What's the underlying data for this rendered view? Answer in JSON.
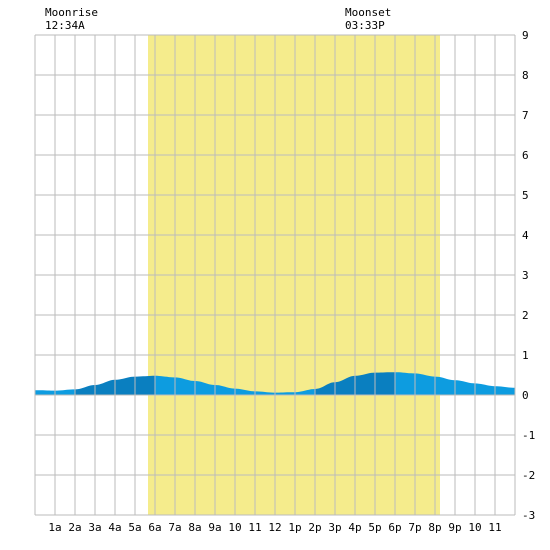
{
  "chart_data": {
    "type": "area",
    "title": "",
    "xlabel": "",
    "ylabel": "",
    "x_range": [
      0,
      24
    ],
    "ylim": [
      -3,
      9
    ],
    "y_ticks": [
      -3,
      -2,
      -1,
      0,
      1,
      2,
      3,
      4,
      5,
      6,
      7,
      8,
      9
    ],
    "x_tick_labels": [
      "1a",
      "2a",
      "3a",
      "4a",
      "5a",
      "6a",
      "7a",
      "8a",
      "9a",
      "10",
      "11",
      "12",
      "1p",
      "2p",
      "3p",
      "4p",
      "5p",
      "6p",
      "7p",
      "8p",
      "9p",
      "10",
      "11"
    ],
    "grid": true,
    "daylight": {
      "start_hour": 5.65,
      "end_hour": 20.25,
      "color": "#f5ec8c"
    },
    "moon": {
      "moonrise_label": "Moonrise",
      "moonrise_time": "12:34A",
      "moonset_label": "Moonset",
      "moonset_time": "03:33P"
    },
    "series": [
      {
        "x": [
          0,
          1,
          2,
          3,
          4,
          5,
          6,
          7,
          8,
          9,
          10,
          11,
          12,
          13,
          14,
          15,
          16,
          17,
          18,
          19,
          20,
          21,
          22,
          23,
          24
        ],
        "values": [
          0.12,
          0.11,
          0.14,
          0.25,
          0.38,
          0.46,
          0.48,
          0.44,
          0.35,
          0.25,
          0.16,
          0.09,
          0.06,
          0.07,
          0.15,
          0.32,
          0.48,
          0.56,
          0.57,
          0.54,
          0.46,
          0.37,
          0.29,
          0.22,
          0.18
        ]
      }
    ],
    "colors": {
      "water_light": "#0d9ce0",
      "water_dark": "#0a7fc0",
      "grid": "#bbbbbb",
      "plot_bg": "#ffffff"
    }
  }
}
